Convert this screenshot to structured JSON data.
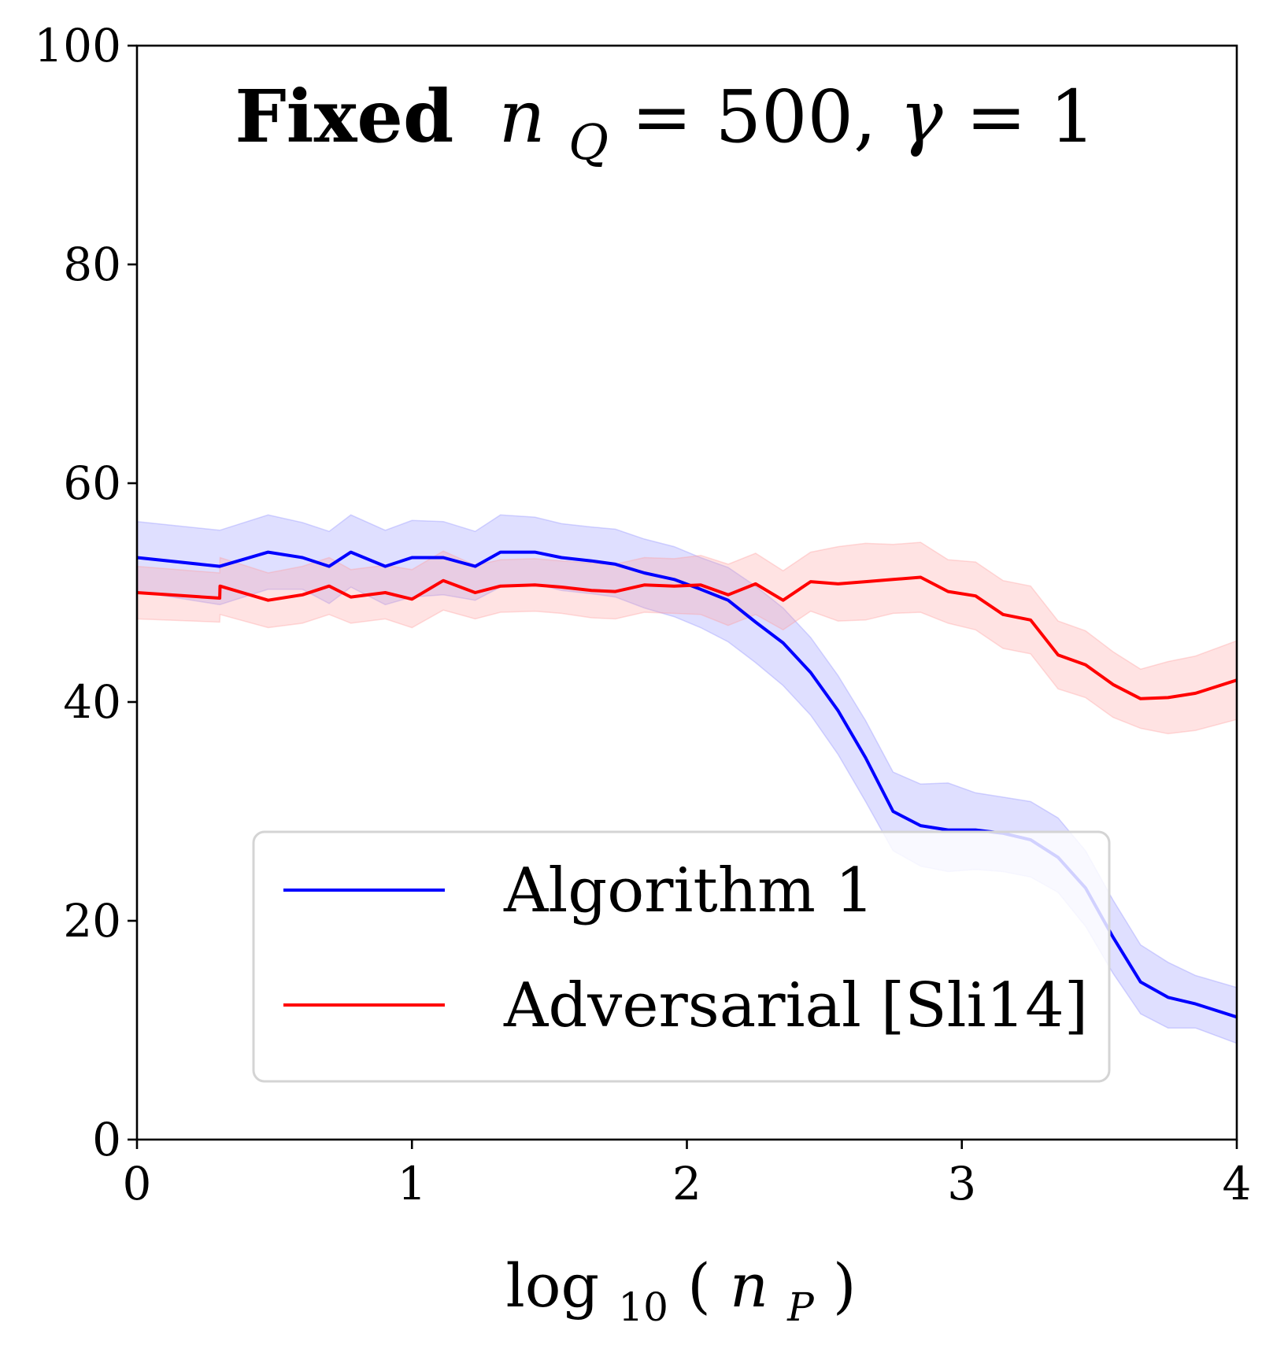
{
  "chart_data": {
    "type": "line",
    "title_bold": "Fixed",
    "title_math": {
      "var": "n",
      "sub": "Q",
      "rest": " = 500, ",
      "gamma": "γ",
      "gamma_rest": " = 1"
    },
    "xlabel": {
      "fn": "log",
      "sub": "10",
      "open": "(",
      "var": "n",
      "var_sub": "P",
      "close": ")"
    },
    "ylabel": "",
    "xlim": [
      0,
      4
    ],
    "ylim": [
      0,
      100
    ],
    "xticks": [
      0,
      1,
      2,
      3,
      4
    ],
    "yticks": [
      0,
      20,
      40,
      60,
      80,
      100
    ],
    "grid": false,
    "legend_position": "lower-center",
    "series": [
      {
        "name": "Algorithm 1",
        "color": "#0000ff",
        "band_color": "#8c8cff",
        "x": [
          0,
          0.301,
          0.477,
          0.602,
          0.699,
          0.778,
          0.903,
          1.0,
          1.114,
          1.23,
          1.322,
          1.447,
          1.544,
          1.653,
          1.74,
          1.845,
          1.954,
          2.05,
          2.15,
          2.25,
          2.35,
          2.45,
          2.55,
          2.65,
          2.75,
          2.85,
          2.95,
          3.05,
          3.15,
          3.25,
          3.35,
          3.45,
          3.55,
          3.65,
          3.75,
          3.85,
          4.0
        ],
        "y": [
          53.2,
          52.4,
          53.7,
          53.2,
          52.4,
          53.7,
          52.4,
          53.2,
          53.2,
          52.4,
          53.7,
          53.7,
          53.2,
          52.9,
          52.6,
          51.8,
          51.2,
          50.3,
          49.3,
          47.3,
          45.4,
          42.7,
          39.2,
          34.9,
          30.0,
          28.7,
          28.3,
          28.3,
          28.0,
          27.4,
          25.8,
          23.0,
          18.5,
          14.4,
          13.0,
          12.4,
          11.2
        ],
        "lower": [
          50.1,
          48.9,
          50.3,
          50.3,
          49.0,
          50.5,
          48.9,
          49.6,
          49.8,
          49.3,
          50.5,
          50.8,
          50.2,
          49.9,
          49.6,
          48.6,
          47.8,
          46.8,
          45.5,
          43.6,
          41.5,
          38.8,
          35.2,
          30.9,
          26.4,
          25.0,
          24.5,
          24.7,
          24.5,
          24.0,
          22.6,
          19.5,
          15.2,
          11.5,
          10.2,
          10.2,
          8.8
        ],
        "upper": [
          56.5,
          55.7,
          57.1,
          56.4,
          55.6,
          57.1,
          55.7,
          56.6,
          56.5,
          55.6,
          57.1,
          56.9,
          56.3,
          56.0,
          55.8,
          54.9,
          54.2,
          53.2,
          52.3,
          50.6,
          48.6,
          45.9,
          42.4,
          38.3,
          33.6,
          32.5,
          32.6,
          31.7,
          31.3,
          30.9,
          29.4,
          26.4,
          21.9,
          17.8,
          16.2,
          15.0,
          13.9
        ]
      },
      {
        "name": "Adversarial [Sli14]",
        "color": "#ff0000",
        "band_color": "#ff9c9c",
        "x": [
          0,
          0.301,
          0.302,
          0.477,
          0.602,
          0.699,
          0.778,
          0.903,
          1.0,
          1.114,
          1.23,
          1.322,
          1.447,
          1.544,
          1.653,
          1.74,
          1.845,
          1.954,
          2.05,
          2.15,
          2.25,
          2.35,
          2.45,
          2.55,
          2.65,
          2.75,
          2.85,
          2.95,
          3.05,
          3.15,
          3.25,
          3.35,
          3.45,
          3.55,
          3.65,
          3.75,
          3.85,
          4.0
        ],
        "y": [
          50.0,
          49.5,
          50.6,
          49.3,
          49.8,
          50.6,
          49.6,
          50.0,
          49.4,
          51.1,
          50.0,
          50.6,
          50.7,
          50.5,
          50.2,
          50.1,
          50.7,
          50.6,
          50.7,
          49.8,
          50.8,
          49.3,
          51.0,
          50.8,
          51.0,
          51.2,
          51.4,
          50.1,
          49.7,
          48.0,
          47.5,
          44.3,
          43.4,
          41.6,
          40.3,
          40.4,
          40.8,
          42.0
        ],
        "lower": [
          47.6,
          47.3,
          48.0,
          46.8,
          47.2,
          48.0,
          47.2,
          47.6,
          46.8,
          48.4,
          47.6,
          48.2,
          48.3,
          48.1,
          47.7,
          47.6,
          48.2,
          48.1,
          48.0,
          47.0,
          48.0,
          46.6,
          48.3,
          47.4,
          47.5,
          48.1,
          48.2,
          47.2,
          46.6,
          44.9,
          44.4,
          41.2,
          40.4,
          38.6,
          37.6,
          37.1,
          37.4,
          38.4
        ],
        "upper": [
          52.4,
          51.8,
          53.2,
          51.8,
          52.4,
          53.2,
          52.1,
          52.5,
          52.1,
          53.8,
          52.5,
          53.0,
          53.1,
          52.9,
          52.7,
          52.6,
          53.2,
          53.1,
          53.4,
          52.6,
          53.6,
          52.0,
          53.7,
          54.2,
          54.5,
          54.4,
          54.6,
          53.0,
          52.8,
          51.1,
          50.6,
          47.4,
          46.5,
          44.6,
          43.0,
          43.7,
          44.2,
          45.6
        ]
      }
    ]
  }
}
